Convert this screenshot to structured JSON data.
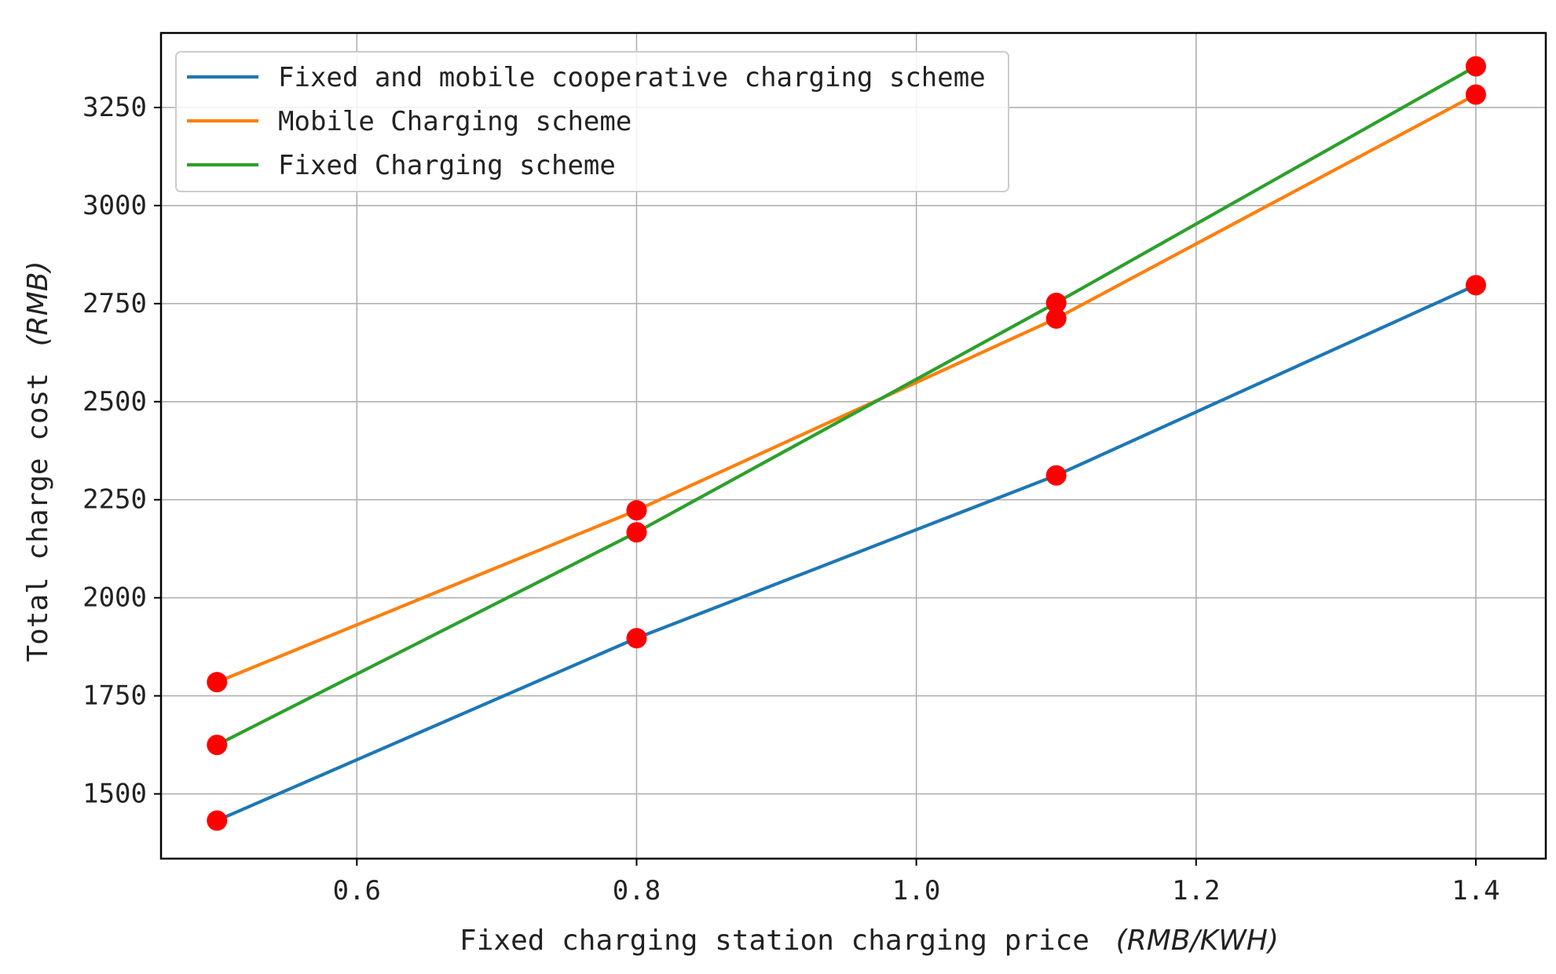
{
  "chart_data": {
    "type": "line",
    "title": "",
    "xlabel": "Fixed charging station charging price",
    "xlabel_unit": "(RMB/KWH)",
    "ylabel": "Total charge cost",
    "ylabel_unit": "(RMB)",
    "x": [
      0.5,
      0.8,
      1.1,
      1.4
    ],
    "xlim": [
      0.46,
      1.45
    ],
    "ylim": [
      1335,
      3440
    ],
    "xticks": [
      0.6,
      0.8,
      1.0,
      1.2,
      1.4
    ],
    "xtick_labels": [
      "0.6",
      "0.8",
      "1.0",
      "1.2",
      "1.4"
    ],
    "yticks": [
      1500,
      1750,
      2000,
      2250,
      2500,
      2750,
      3000,
      3250
    ],
    "ytick_labels": [
      "1500",
      "1750",
      "2000",
      "2250",
      "2500",
      "2750",
      "3000",
      "3250"
    ],
    "grid": true,
    "legend_position": "top-left",
    "marker_color": "#ff0000",
    "series": [
      {
        "name": "Fixed and mobile cooperative charging scheme",
        "color": "#1f77b4",
        "values": [
          1432,
          1897,
          2312,
          2797
        ]
      },
      {
        "name": "Mobile Charging scheme",
        "color": "#ff7f0e",
        "values": [
          1785,
          2223,
          2712,
          3283
        ]
      },
      {
        "name": "Fixed Charging scheme",
        "color": "#2ca02c",
        "values": [
          1625,
          2167,
          2752,
          3355
        ]
      }
    ]
  }
}
